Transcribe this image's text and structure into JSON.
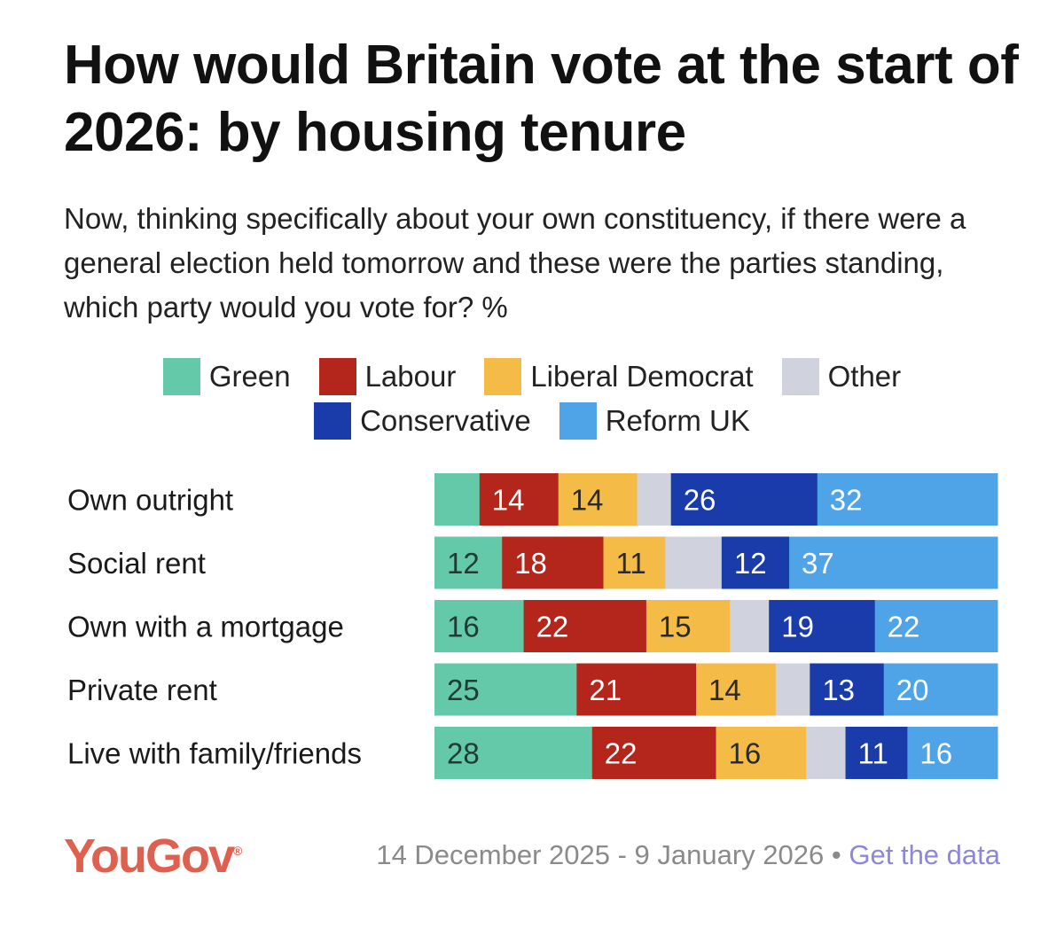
{
  "title": "How would Britain vote at the start of 2026: by housing tenure",
  "subtitle": "Now, thinking specifically about your own constituency, if there were a general election held tomorrow and these were the parties standing, which party would you vote for? %",
  "legend": {
    "row1": [
      {
        "name": "Green",
        "color": "#64c9a8"
      },
      {
        "name": "Labour",
        "color": "#b4261c"
      },
      {
        "name": "Liberal Democrat",
        "color": "#f4bb47"
      },
      {
        "name": "Other",
        "color": "#d0d3dd"
      }
    ],
    "row2": [
      {
        "name": "Conservative",
        "color": "#1a3cab"
      },
      {
        "name": "Reform UK",
        "color": "#4fa4e8"
      }
    ]
  },
  "chart_data": {
    "type": "bar",
    "orientation": "horizontal",
    "stacked": true,
    "unit": "%",
    "categories": [
      "Own outright",
      "Social rent",
      "Own with a mortgage",
      "Private rent",
      "Live with family/friends"
    ],
    "series": [
      {
        "name": "Green",
        "color": "#64c9a8",
        "label_color": "#1f3b35",
        "values": [
          8,
          12,
          16,
          25,
          28
        ],
        "labels": [
          "",
          "12",
          "16",
          "25",
          "28"
        ]
      },
      {
        "name": "Labour",
        "color": "#b4261c",
        "label_color": "#ffffff",
        "values": [
          14,
          18,
          22,
          21,
          22
        ],
        "labels": [
          "14",
          "18",
          "22",
          "21",
          "22"
        ]
      },
      {
        "name": "Liberal Democrat",
        "color": "#f4bb47",
        "label_color": "#2a2a2a",
        "values": [
          14,
          11,
          15,
          14,
          16
        ],
        "labels": [
          "14",
          "11",
          "15",
          "14",
          "16"
        ]
      },
      {
        "name": "Other",
        "color": "#d0d3dd",
        "label_color": "#2a2a2a",
        "values": [
          6,
          10,
          7,
          6,
          7
        ],
        "labels": [
          "",
          "",
          "",
          "",
          ""
        ]
      },
      {
        "name": "Conservative",
        "color": "#1a3cab",
        "label_color": "#ffffff",
        "values": [
          26,
          12,
          19,
          13,
          11
        ],
        "labels": [
          "26",
          "12",
          "19",
          "13",
          "11"
        ]
      },
      {
        "name": "Reform UK",
        "color": "#4fa4e8",
        "label_color": "#ffffff",
        "values": [
          32,
          37,
          22,
          20,
          16
        ],
        "labels": [
          "32",
          "37",
          "22",
          "20",
          "16"
        ]
      }
    ]
  },
  "footer": {
    "logo": "YouGov",
    "logo_mark": "®",
    "date_range": "14 December 2025 - 9 January 2026",
    "separator": "•",
    "link": "Get the data"
  }
}
